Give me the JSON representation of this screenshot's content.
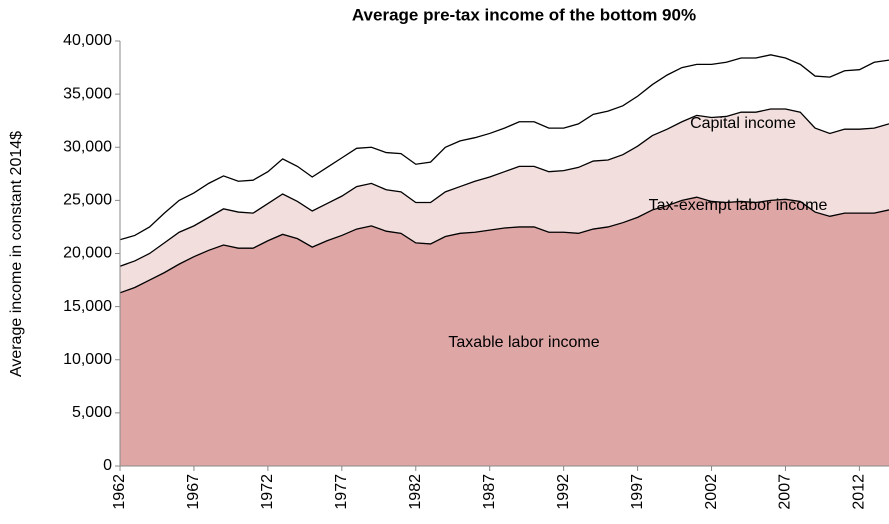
{
  "chart_data": {
    "type": "stacked_area",
    "title": "Average pre-tax income of the bottom 90%",
    "y_label": "Average income in constant 2014$",
    "x": [
      1962,
      1963,
      1964,
      1965,
      1966,
      1967,
      1968,
      1969,
      1970,
      1971,
      1972,
      1973,
      1974,
      1975,
      1976,
      1977,
      1978,
      1979,
      1980,
      1981,
      1982,
      1983,
      1984,
      1985,
      1986,
      1987,
      1988,
      1989,
      1990,
      1991,
      1992,
      1993,
      1994,
      1995,
      1996,
      1997,
      1998,
      1999,
      2000,
      2001,
      2002,
      2003,
      2004,
      2005,
      2006,
      2007,
      2008,
      2009,
      2010,
      2011,
      2012,
      2013,
      2014
    ],
    "xlim": [
      1962,
      2014
    ],
    "xticks": [
      1962,
      1967,
      1972,
      1977,
      1982,
      1987,
      1992,
      1997,
      2002,
      2007,
      2012
    ],
    "ylim": [
      0,
      40000
    ],
    "yticks": [
      0,
      {
        "value": 5000,
        "label": "5,000"
      },
      {
        "value": 10000,
        "label": "10,000"
      },
      {
        "value": 15000,
        "label": "15,000"
      },
      {
        "value": 20000,
        "label": "20,000"
      },
      {
        "value": 25000,
        "label": "25,000"
      },
      {
        "value": 30000,
        "label": "30,000"
      },
      {
        "value": 35000,
        "label": "35,000"
      },
      {
        "value": 40000,
        "label": "40,000"
      }
    ],
    "series": [
      {
        "name": "Taxable labor income",
        "color": "#dfa6a6",
        "values": [
          16300,
          16800,
          17500,
          18200,
          19000,
          19700,
          20300,
          20800,
          20500,
          20500,
          21200,
          21800,
          21400,
          20600,
          21200,
          21700,
          22300,
          22600,
          22100,
          21900,
          21000,
          20900,
          21600,
          21900,
          22000,
          22200,
          22400,
          22500,
          22500,
          22000,
          22000,
          21900,
          22300,
          22500,
          22900,
          23400,
          24100,
          24500,
          25000,
          25300,
          24900,
          24800,
          24900,
          24800,
          25000,
          25100,
          24900,
          23900,
          23500,
          23800,
          23800,
          23800,
          24100
        ]
      },
      {
        "name": "Tax-exempt labor income",
        "color": "#f2dedd",
        "values": [
          2500,
          2500,
          2500,
          2800,
          3000,
          2900,
          3100,
          3400,
          3400,
          3300,
          3500,
          3800,
          3500,
          3400,
          3500,
          3700,
          4000,
          4000,
          3900,
          3900,
          3800,
          3900,
          4200,
          4400,
          4800,
          5000,
          5300,
          5700,
          5700,
          5700,
          5800,
          6200,
          6400,
          6300,
          6400,
          6700,
          7000,
          7200,
          7400,
          7700,
          7900,
          8100,
          8400,
          8500,
          8600,
          8500,
          8400,
          7900,
          7800,
          7900,
          7900,
          8000,
          8100
        ]
      },
      {
        "name": "Capital income",
        "color": "#ffffff",
        "values": [
          2500,
          2400,
          2500,
          2800,
          3000,
          3100,
          3200,
          3100,
          2900,
          3100,
          3000,
          3300,
          3300,
          3200,
          3400,
          3600,
          3600,
          3400,
          3500,
          3600,
          3600,
          3800,
          4200,
          4300,
          4100,
          4100,
          4100,
          4200,
          4200,
          4100,
          4000,
          4100,
          4400,
          4600,
          4600,
          4700,
          4800,
          5100,
          5100,
          4800,
          5000,
          5100,
          5100,
          5100,
          5100,
          4800,
          4500,
          4900,
          5300,
          5500,
          5600,
          6200,
          6000
        ]
      }
    ]
  }
}
